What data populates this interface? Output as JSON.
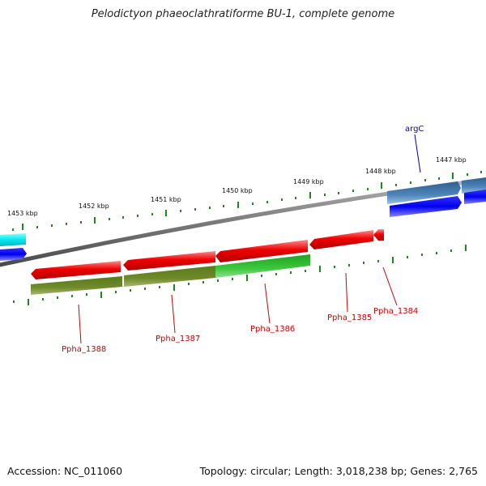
{
  "title": "Pelodictyon phaeoclathratiforme BU-1, complete genome",
  "footer": {
    "accession": "Accession: NC_011060",
    "stats": "Topology: circular; Length: 3,018,238 bp; Genes: 2,765"
  },
  "colors": {
    "tick": "#1a8a1a",
    "label_red": "#cc0000",
    "label_blue": "#0000aa",
    "backbone": "#7a7a7a"
  },
  "scale_labels": [
    "1453 kbp",
    "1452 kbp",
    "1451 kbp",
    "1450 kbp",
    "1449 kbp",
    "1448 kbp",
    "1447 kbp"
  ],
  "genes": [
    {
      "label": "Ppha_1388",
      "color": "#cc0000"
    },
    {
      "label": "Ppha_1387",
      "color": "#cc0000"
    },
    {
      "label": "Ppha_1386",
      "color": "#cc0000"
    },
    {
      "label": "Ppha_1385",
      "color": "#cc0000"
    },
    {
      "label": "Ppha_1384",
      "color": "#cc0000"
    },
    {
      "label": "argC",
      "color": "#0000aa"
    }
  ]
}
